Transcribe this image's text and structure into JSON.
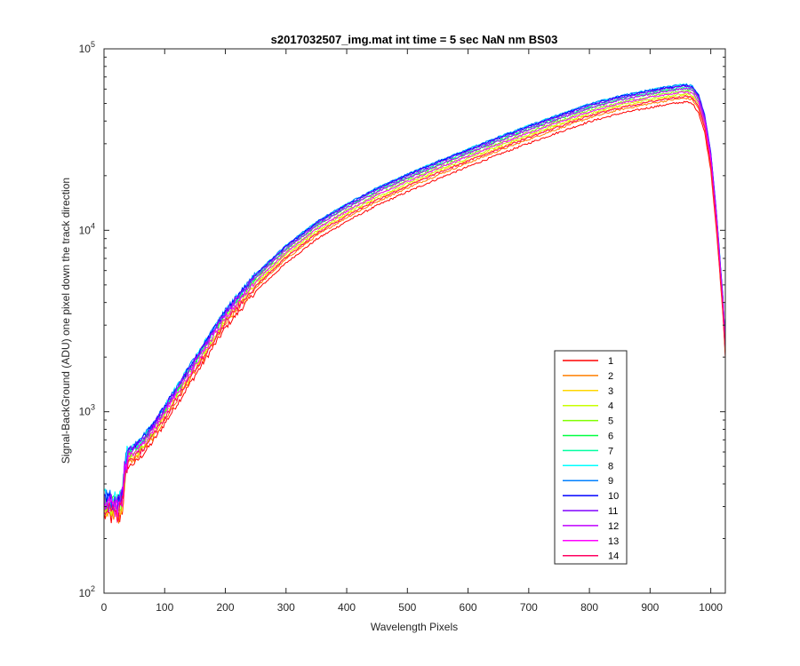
{
  "chart_data": {
    "type": "line",
    "title": "s2017032507_img.mat int time = 5 sec  NaN nm BS03",
    "xlabel": "Wavelength Pixels",
    "ylabel": "Signal-BackGround (ADU) one pixel down the track direction",
    "xlim": [
      0,
      1024
    ],
    "ylim": [
      100,
      100000
    ],
    "yscale": "log",
    "grid": false,
    "legend_position": "bottom-right",
    "x_ticks": [
      0,
      100,
      200,
      300,
      400,
      500,
      600,
      700,
      800,
      900,
      1000
    ],
    "x_tick_labels": [
      "0",
      "100",
      "200",
      "300",
      "400",
      "500",
      "600",
      "700",
      "800",
      "900",
      "1000"
    ],
    "y_ticks": [
      100,
      1000,
      10000,
      100000
    ],
    "y_tick_labels": [
      "10",
      "10",
      "10",
      "10"
    ],
    "y_tick_exponents": [
      "2",
      "3",
      "4",
      "5"
    ],
    "x_base": [
      0,
      20,
      25,
      30,
      35,
      40,
      50,
      60,
      80,
      100,
      150,
      200,
      250,
      300,
      350,
      400,
      450,
      500,
      550,
      600,
      650,
      700,
      750,
      800,
      850,
      900,
      930,
      950,
      960,
      970,
      980,
      990,
      1000,
      1010,
      1020,
      1024
    ],
    "series": [
      {
        "name": "1",
        "color": "#ff0000",
        "scale": 0.8,
        "values": [
          270,
          260,
          260,
          290,
          420,
          500,
          520,
          560,
          680,
          860,
          1580,
          2900,
          4600,
          6600,
          8900,
          11200,
          13700,
          16300,
          19200,
          22400,
          26100,
          30200,
          34700,
          39700,
          44000,
          47500,
          49500,
          50600,
          50900,
          49800,
          44500,
          34500,
          21500,
          9500,
          3400,
          2000
        ]
      },
      {
        "name": "2",
        "color": "#ff7f00",
        "scale": 0.84
      },
      {
        "name": "3",
        "color": "#ffd700",
        "scale": 0.87
      },
      {
        "name": "4",
        "color": "#c8ff00",
        "scale": 0.89
      },
      {
        "name": "5",
        "color": "#7fff00",
        "scale": 0.92
      },
      {
        "name": "6",
        "color": "#00ff40",
        "scale": 0.95
      },
      {
        "name": "7",
        "color": "#00ffa0",
        "scale": 0.97
      },
      {
        "name": "8",
        "color": "#00ffff",
        "scale": 1.0
      },
      {
        "name": "9",
        "color": "#0080ff",
        "scale": 1.0
      },
      {
        "name": "10",
        "color": "#0000ff",
        "scale": 0.99
      },
      {
        "name": "11",
        "color": "#8000ff",
        "scale": 0.98
      },
      {
        "name": "12",
        "color": "#bf00ff",
        "scale": 0.95
      },
      {
        "name": "13",
        "color": "#ff00ff",
        "scale": 0.91
      },
      {
        "name": "14",
        "color": "#ff0060",
        "scale": 0.86
      }
    ]
  }
}
